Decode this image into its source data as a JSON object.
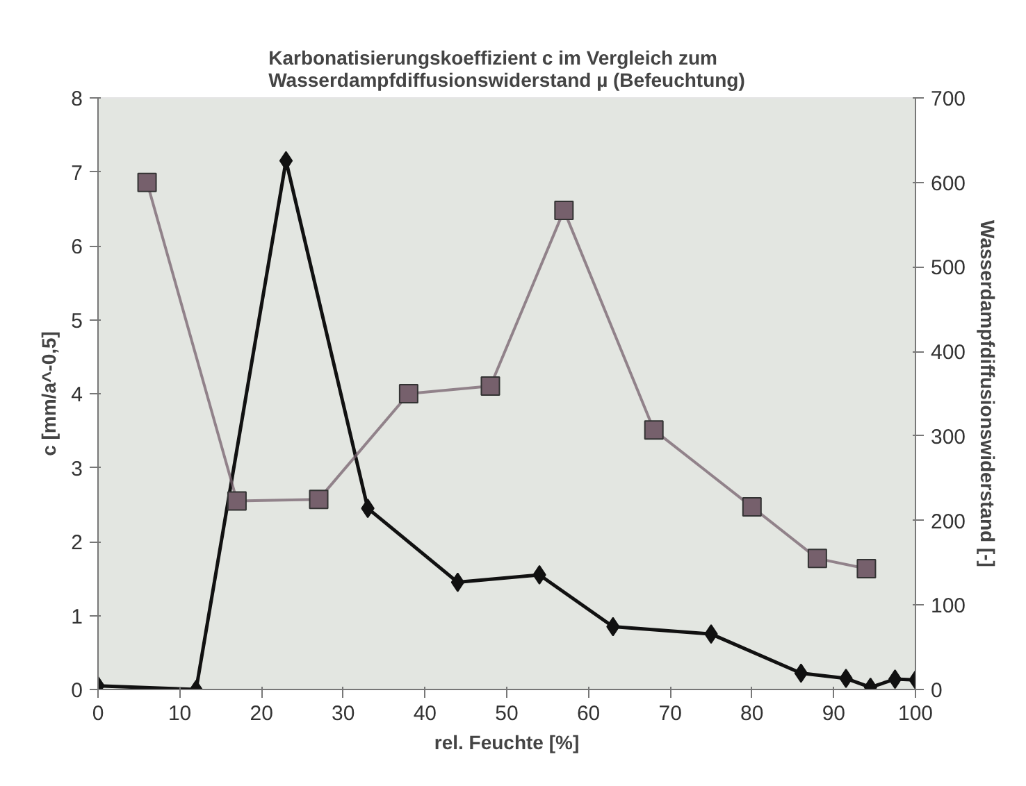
{
  "chart_data": {
    "type": "line",
    "title": "Karbonatisierungskoeffizient c im Vergleich zum\nWasserdampfdiffusionswiderstand µ (Befeuchtung)",
    "xlabel": "rel. Feuchte [%]",
    "ylabel": "c [mm/a^-0,5]",
    "y2label": "Wasserdampfdiffusionswiderstand [-]",
    "xlim": [
      0,
      100
    ],
    "xticks": [
      0,
      10,
      20,
      30,
      40,
      50,
      60,
      70,
      80,
      90,
      100
    ],
    "ylim": [
      0,
      8
    ],
    "yticks": [
      0,
      1,
      2,
      3,
      4,
      5,
      6,
      7,
      8
    ],
    "y2lim": [
      0,
      700
    ],
    "y2ticks": [
      0,
      100,
      200,
      300,
      400,
      500,
      600,
      700
    ],
    "series": [
      {
        "color": "#111111",
        "marker": "diamond",
        "x": [
          0,
          12,
          23,
          33,
          44,
          54,
          63,
          75,
          86,
          91.5,
          94.5,
          97.5,
          100
        ],
        "values": [
          0.05,
          0,
          7.15,
          2.45,
          1.45,
          1.55,
          0.85,
          0.75,
          0.22,
          0.15,
          0.03,
          0.14,
          0.13
        ]
      },
      {
        "color": "#76606c",
        "marker": "square",
        "axis": "y2",
        "x": [
          6,
          17,
          27,
          38,
          48,
          57,
          68,
          80,
          88,
          94
        ],
        "values": [
          600,
          223,
          225,
          350,
          359,
          567,
          307,
          216,
          155,
          143
        ]
      }
    ]
  }
}
